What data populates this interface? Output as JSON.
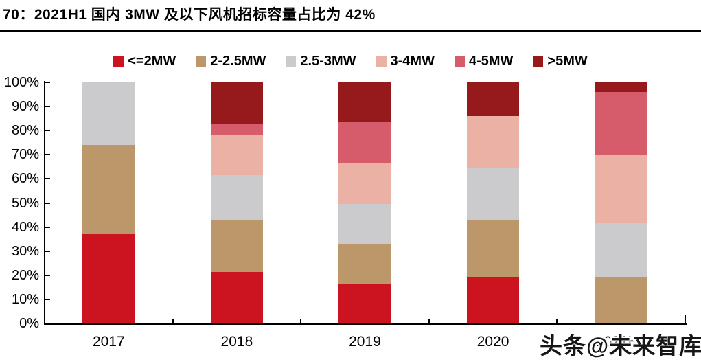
{
  "title": "70：2021H1 国内 3MW 及以下风机招标容量占比为 42%",
  "watermark": "头条@未来智库",
  "chart_data": {
    "type": "bar",
    "stacked": true,
    "units": "percent of total bid capacity",
    "title": "70：2021H1 国内 3MW 及以下风机招标容量占比为 42%",
    "categories": [
      "2017",
      "2018",
      "2019",
      "2020",
      "2021H1"
    ],
    "series": [
      {
        "name": "<=2MW",
        "color": "#CC1320",
        "values": [
          37,
          21.5,
          16.5,
          19,
          0
        ]
      },
      {
        "name": "2-2.5MW",
        "color": "#BB9769",
        "values": [
          37,
          21.5,
          16.5,
          24,
          19
        ]
      },
      {
        "name": "2.5-3MW",
        "color": "#CBCBCD",
        "values": [
          26,
          18.5,
          16.5,
          21.5,
          22.5
        ]
      },
      {
        "name": "3-4MW",
        "color": "#EBB1A5",
        "values": [
          0,
          16.5,
          17,
          21.5,
          28.5
        ]
      },
      {
        "name": "4-5MW",
        "color": "#D65C6B",
        "values": [
          0,
          5,
          17,
          0,
          26
        ]
      },
      {
        "name": ">5MW",
        "color": "#96191C",
        "values": [
          0,
          17,
          16.5,
          14,
          4
        ]
      }
    ],
    "xlabel": "",
    "ylabel": "",
    "ylim": [
      0,
      100
    ],
    "ytick_labels": [
      "0%",
      "10%",
      "20%",
      "30%",
      "40%",
      "50%",
      "60%",
      "70%",
      "80%",
      "90%",
      "100%"
    ],
    "legend_position": "top",
    "grid": false
  }
}
